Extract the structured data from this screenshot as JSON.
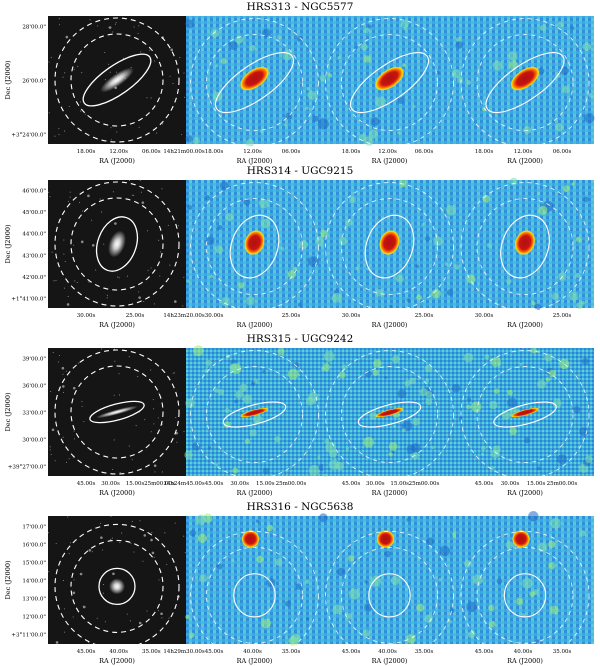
{
  "figure": {
    "axis_labels": {
      "x": "RA (J2000)",
      "y": "Dec (J2000)"
    },
    "rows": [
      {
        "title": "HRS313 - NGC5577",
        "dec_ticks": [
          "28'00.0\"",
          "26'00.0\"",
          "+3°24'00.0\""
        ],
        "ra_ticks_optical": [
          "18.00s",
          "12.00s",
          "06.00s",
          "14h21m00.00s"
        ],
        "ra_ticks_map": [
          "18.00s",
          "12.00s",
          "06.00s"
        ],
        "panel_ra_ticks": [
          [
            "18.00s",
            "12.00s",
            "06.00s"
          ],
          [
            "18.00s",
            "12.00s",
            "06.00s"
          ],
          [
            "18.00s",
            "12.00s",
            "06.00s"
          ]
        ],
        "galaxy": {
          "shape": "elongated",
          "tilt_deg": -35
        }
      },
      {
        "title": "HRS314 - UGC9215",
        "dec_ticks": [
          "46'00.0\"",
          "45'00.0\"",
          "44'00.0\"",
          "43'00.0\"",
          "42'00.0\"",
          "+1°41'00.0\""
        ],
        "ra_ticks_optical": [
          "30.00s",
          "25.00s",
          "14h23m20.00s"
        ],
        "ra_ticks_map": [
          "30.00s",
          "25.00s"
        ],
        "panel_ra_ticks": [
          [
            "30.00s",
            "25.00s"
          ],
          [
            "30.00s",
            "25.00s"
          ],
          [
            "30.00s",
            "25.00s"
          ]
        ],
        "galaxy": {
          "shape": "oval",
          "tilt_deg": -70
        }
      },
      {
        "title": "HRS315 - UGC9242",
        "dec_ticks": [
          "39'00.0\"",
          "36'00.0\"",
          "33'00.0\"",
          "30'00.0\"",
          "+39°27'00.0\""
        ],
        "ra_ticks_optical": [
          "45.00s",
          "30.00s",
          "15.00s",
          "25m00.00s",
          "14h24m45.00s"
        ],
        "ra_ticks_map": [
          "45.00s",
          "30.00s",
          "15.00s",
          "25m00.00s"
        ],
        "panel_ra_ticks": [
          [
            "45.00s",
            "30.00s",
            "15.00s",
            "25m00.00s"
          ],
          [
            "45.00s",
            "30.00s",
            "15.00s",
            "25m00.00s"
          ],
          [
            "45.00s",
            "30.00s",
            "15.00s",
            "25m00.00s"
          ]
        ],
        "galaxy": {
          "shape": "thin",
          "tilt_deg": -15
        }
      },
      {
        "title": "HRS316 - NGC5638",
        "dec_ticks": [
          "17'00.0\"",
          "16'00.0\"",
          "15'00.0\"",
          "14'00.0\"",
          "13'00.0\"",
          "12'00.0\"",
          "+3°11'00.0\""
        ],
        "ra_ticks_optical": [
          "45.00s",
          "40.00s",
          "35.00s",
          "14h29m30.00s"
        ],
        "ra_ticks_map": [
          "45.00s",
          "40.00s",
          "35.00s"
        ],
        "panel_ra_ticks": [
          [
            "45.00s",
            "40.00s",
            "35.00s"
          ],
          [
            "45.00s",
            "40.00s",
            "35.00s"
          ],
          [
            "45.00s",
            "40.00s",
            "35.00s"
          ]
        ],
        "galaxy": {
          "shape": "round",
          "tilt_deg": 0
        }
      }
    ],
    "colors": {
      "map_background": "#38a8e0",
      "map_background_dark": "#2a7fd0",
      "core_red": "#b01010",
      "core_orange": "#ff6a00",
      "core_yellow": "#ffe000",
      "aperture": "#ffffff",
      "optical_background": "#151515"
    }
  }
}
